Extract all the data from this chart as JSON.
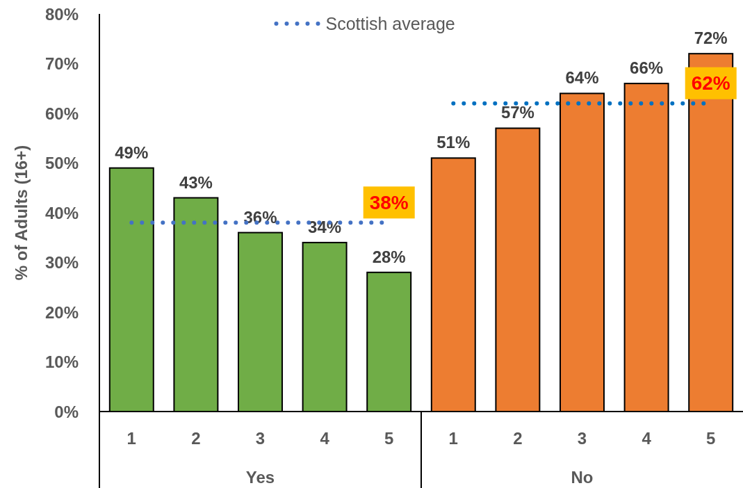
{
  "chart_data": {
    "type": "bar",
    "categories": [
      "1",
      "2",
      "3",
      "4",
      "5",
      "1",
      "2",
      "3",
      "4",
      "5"
    ],
    "series": [
      {
        "color": "#70ad47",
        "values": [
          49,
          43,
          36,
          34,
          28,
          null,
          null,
          null,
          null,
          null
        ],
        "value_labels": [
          "49%",
          "43%",
          "36%",
          "34%",
          "28%",
          null,
          null,
          null,
          null,
          null
        ]
      },
      {
        "color": "#ed7d31",
        "values": [
          null,
          null,
          null,
          null,
          null,
          51,
          57,
          64,
          66,
          72
        ],
        "value_labels": [
          null,
          null,
          null,
          null,
          null,
          "51%",
          "57%",
          "64%",
          "66%",
          "72%"
        ]
      },
      {
        "name": "Scottish average",
        "type": "line",
        "color": "#4472c4",
        "line_style": "dotted",
        "values": [
          38,
          38,
          38,
          38,
          38,
          null,
          null,
          null,
          null,
          null
        ],
        "value_labels": [
          null,
          null,
          null,
          null,
          "38%",
          null,
          null,
          null,
          null,
          null
        ]
      },
      {
        "type": "line",
        "color": "#0070c0",
        "line_style": "dotted",
        "values": [
          null,
          null,
          null,
          null,
          null,
          62,
          62,
          62,
          62,
          62
        ],
        "value_labels": [
          null,
          null,
          null,
          null,
          null,
          null,
          null,
          null,
          null,
          "62%"
        ]
      }
    ],
    "annotations": [
      "Yes",
      "No"
    ],
    "ylabel": "% of Adults (16+)",
    "ylim": [
      0,
      80
    ],
    "yticks": [
      {
        "value": 0,
        "label": "0%"
      },
      {
        "value": 10,
        "label": "10%"
      },
      {
        "value": 20,
        "label": "20%"
      },
      {
        "value": 30,
        "label": "30%"
      },
      {
        "value": 40,
        "label": "40%"
      },
      {
        "value": 50,
        "label": "50%"
      },
      {
        "value": 60,
        "label": "60%"
      },
      {
        "value": 70,
        "label": "70%"
      },
      {
        "value": 80,
        "label": "80%"
      }
    ],
    "legend": "top"
  }
}
